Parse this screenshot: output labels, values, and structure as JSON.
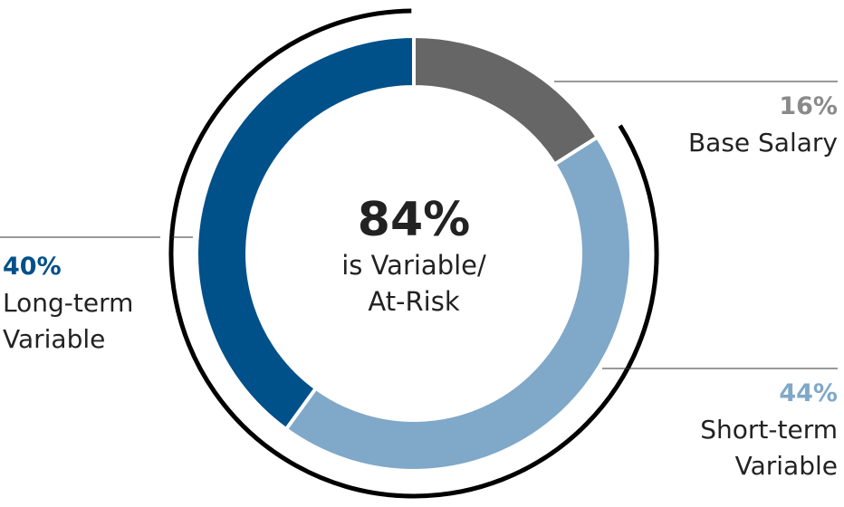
{
  "chart_data": {
    "type": "pie",
    "donut": true,
    "categories": [
      "Base Salary",
      "Short-term Variable",
      "Long-term Variable"
    ],
    "values": [
      16,
      44,
      40
    ],
    "value_labels": [
      "16%",
      "44%",
      "40%"
    ],
    "colors": [
      "#666666",
      "#80a8c8",
      "#00508a"
    ],
    "label_colors": [
      "#8a8a8a",
      "#80a8c8",
      "#00508a"
    ],
    "center_label": "84%",
    "center_text": [
      "is Variable/",
      "At-Risk"
    ]
  }
}
